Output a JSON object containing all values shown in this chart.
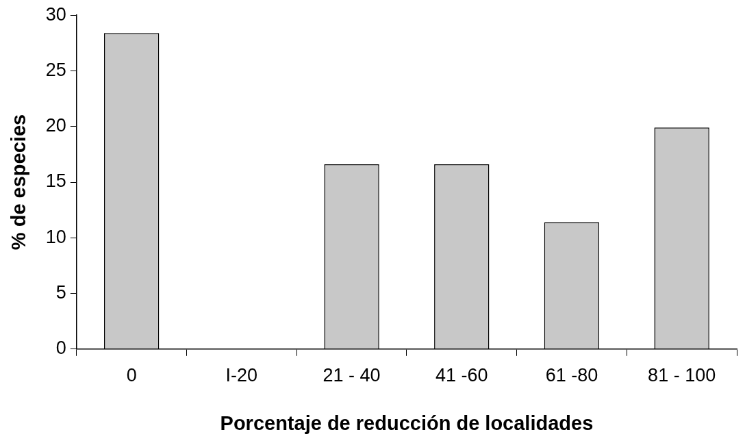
{
  "chart_data": {
    "type": "bar",
    "xlabel": "Porcentaje de reducción de localidades",
    "ylabel": "% de especies",
    "categories": [
      "0",
      "I-20",
      "21 - 40",
      "41 -60",
      "61 -80",
      "81 - 100"
    ],
    "values": [
      28.4,
      0,
      16.6,
      16.6,
      11.4,
      19.9
    ],
    "color": "#c8c8c8",
    "ylim": [
      0,
      30
    ],
    "yticks": [
      0,
      5,
      10,
      15,
      20,
      25,
      30
    ],
    "grid": false,
    "legend": false
  }
}
